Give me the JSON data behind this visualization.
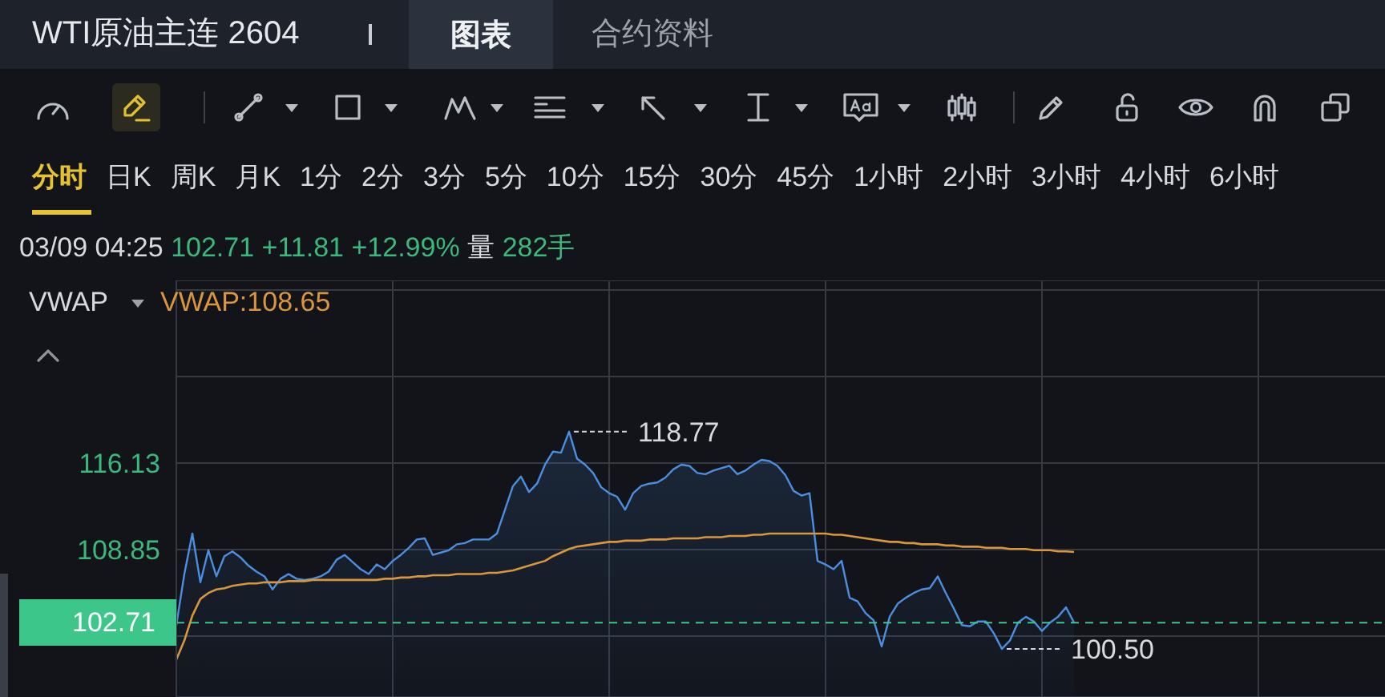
{
  "chart_data": {
    "type": "line",
    "title": "WTI原油主连 2604",
    "subtitle": "03/09 04:25 102.71 +11.81 +12.99% 量 282手",
    "annotations": [
      "图表",
      "合约资料",
      "分时",
      "日K",
      "周K",
      "月K",
      "1分",
      "2分",
      "3分",
      "5分",
      "10分",
      "15分",
      "30分",
      "45分",
      "1小时",
      "2小时",
      "3小时",
      "4小时",
      "6小时",
      "VWAP",
      "118.77",
      "100.50"
    ],
    "categories": [
      null,
      null,
      null,
      null,
      null,
      null,
      null,
      null,
      null,
      null,
      null,
      null,
      null,
      null,
      null,
      null,
      null,
      null,
      null,
      null,
      null,
      null,
      null,
      null,
      null,
      null,
      null,
      null,
      null,
      null,
      null,
      null,
      null,
      null,
      null,
      null,
      null,
      null,
      null,
      null,
      null,
      null,
      null,
      null,
      null,
      null,
      null,
      null,
      null,
      null,
      null,
      null,
      null,
      null,
      null,
      null,
      null,
      null,
      null,
      null,
      null,
      null,
      null,
      null,
      null,
      null,
      null,
      null,
      null,
      null,
      null,
      null,
      null,
      null,
      null,
      null,
      null,
      null,
      null,
      null,
      null,
      null,
      null,
      null,
      null,
      null,
      null,
      null,
      null,
      null,
      null,
      null,
      null,
      null,
      null,
      null,
      null,
      null,
      null,
      null,
      null,
      null,
      null,
      null,
      null,
      null,
      null,
      null,
      null,
      null,
      null,
      null,
      null
    ],
    "series": [
      {
        "type": "area",
        "color": "#4a8fe2",
        "values": [
          102.5,
          106.8,
          110.2,
          106.1,
          108.8,
          106.6,
          108.3,
          108.7,
          108.2,
          107.5,
          107.0,
          106.6,
          105.5,
          106.4,
          106.8,
          106.4,
          106.3,
          106.4,
          106.6,
          107.0,
          108.0,
          108.4,
          107.8,
          107.2,
          106.8,
          107.6,
          107.2,
          107.9,
          108.4,
          109.0,
          109.7,
          109.8,
          108.4,
          108.6,
          108.8,
          109.3,
          109.4,
          109.7,
          109.7,
          109.7,
          110.2,
          112.2,
          114.2,
          115.0,
          113.7,
          114.4,
          116.0,
          117.1,
          117.0,
          118.77,
          116.5,
          116.0,
          115.3,
          114.1,
          113.6,
          113.3,
          112.2,
          113.6,
          114.2,
          114.4,
          114.5,
          114.9,
          115.6,
          116.0,
          115.9,
          115.3,
          115.2,
          115.5,
          115.7,
          115.9,
          115.2,
          115.5,
          116.0,
          116.4,
          116.3,
          115.9,
          115.1,
          113.8,
          113.4,
          113.6,
          107.9,
          107.6,
          107.2,
          107.9,
          104.8,
          104.5,
          103.5,
          102.9,
          100.7,
          103.2,
          104.3,
          104.8,
          105.2,
          105.5,
          105.6,
          106.6,
          105.2,
          103.9,
          102.5,
          102.4,
          102.8,
          102.8,
          101.8,
          100.5,
          101.2,
          102.7,
          103.2,
          102.8,
          102.0,
          102.7,
          103.2,
          104.0,
          102.71
        ]
      },
      {
        "name": "VWAP:108.65",
        "color": "#d9963c",
        "values": [
          99.6,
          101.2,
          103.3,
          104.7,
          105.2,
          105.5,
          105.6,
          105.8,
          105.9,
          106.0,
          106.0,
          106.1,
          106.1,
          106.1,
          106.2,
          106.2,
          106.2,
          106.3,
          106.3,
          106.3,
          106.3,
          106.3,
          106.3,
          106.3,
          106.3,
          106.3,
          106.4,
          106.4,
          106.5,
          106.5,
          106.6,
          106.6,
          106.7,
          106.7,
          106.7,
          106.8,
          106.8,
          106.8,
          106.8,
          106.9,
          106.9,
          107.0,
          107.1,
          107.3,
          107.5,
          107.7,
          107.9,
          108.3,
          108.6,
          108.9,
          109.1,
          109.2,
          109.3,
          109.4,
          109.5,
          109.5,
          109.6,
          109.6,
          109.6,
          109.7,
          109.7,
          109.7,
          109.8,
          109.8,
          109.8,
          109.8,
          109.9,
          109.9,
          109.9,
          110.0,
          110.0,
          110.0,
          110.1,
          110.1,
          110.2,
          110.2,
          110.2,
          110.2,
          110.2,
          110.2,
          110.2,
          110.2,
          110.1,
          110.1,
          110.0,
          109.9,
          109.8,
          109.7,
          109.6,
          109.5,
          109.5,
          109.4,
          109.4,
          109.3,
          109.3,
          109.3,
          109.2,
          109.2,
          109.1,
          109.1,
          109.1,
          109.0,
          109.0,
          109.0,
          108.9,
          108.9,
          108.9,
          108.8,
          108.8,
          108.8,
          108.7,
          108.7,
          108.65
        ]
      }
    ],
    "ylim": [
      96.45,
      131.5
    ],
    "yticks": [
      {
        "value": 130.69,
        "label": null
      },
      {
        "value": 123.41,
        "label": null
      },
      116.13,
      108.85,
      {
        "value": 101.57,
        "label": null
      }
    ],
    "ref_lines": [
      {
        "axis": "y",
        "value": 102.71,
        "label": "102.71",
        "color": "#3cc68a",
        "line_style": "dashed"
      }
    ],
    "grid": true,
    "legend": "top left"
  }
}
